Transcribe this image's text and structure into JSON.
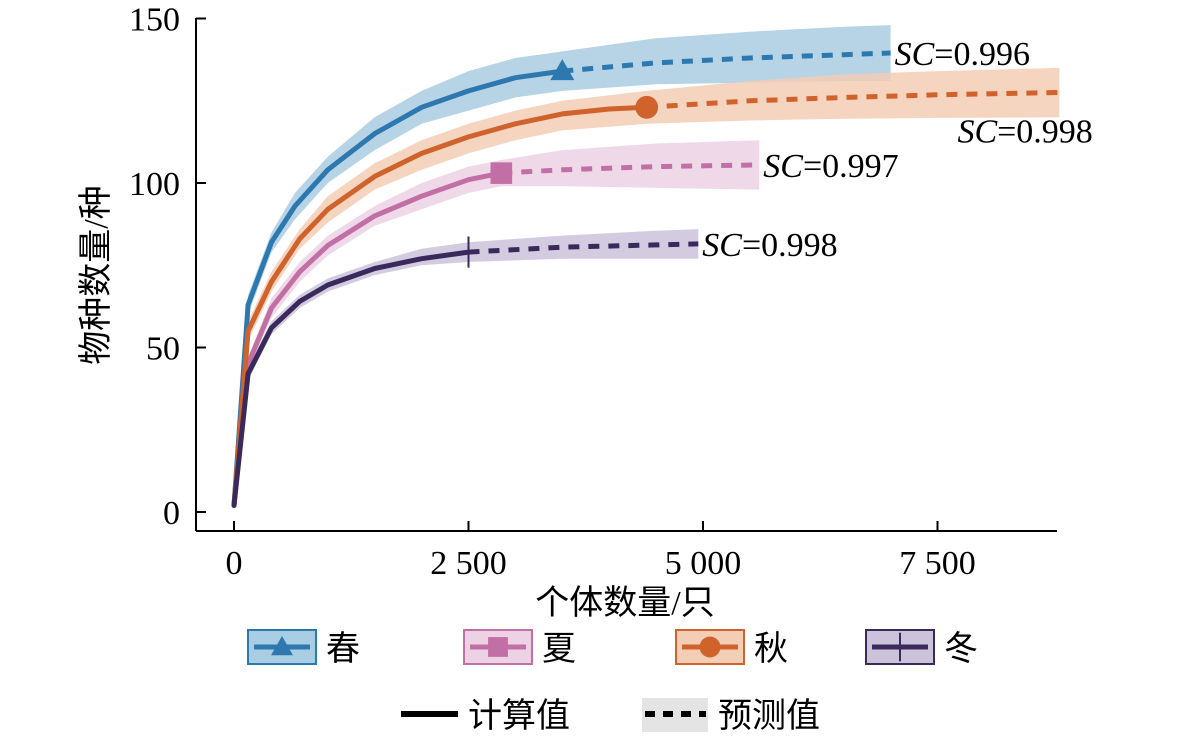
{
  "chart_data": {
    "type": "line",
    "xlabel": "个体数量/只",
    "ylabel": "物种数量/种",
    "xlim": [
      0,
      8800
    ],
    "ylim": [
      0,
      150
    ],
    "xticks": [
      0,
      2500,
      5000,
      7500
    ],
    "xtick_labels": [
      "0",
      "2 500",
      "5 000",
      "7 500"
    ],
    "yticks": [
      0,
      50,
      100,
      150
    ],
    "ytick_labels": [
      "0",
      "50",
      "100",
      "150"
    ],
    "grid": false,
    "legend_placement": "bottom",
    "series": [
      {
        "name": "春",
        "color": "#2e78b0",
        "band_color": "#a9cde2",
        "marker": "triangle",
        "marker_x": 3500,
        "sc_label": "SC=0.996",
        "calculated": [
          [
            0,
            2
          ],
          [
            150,
            63
          ],
          [
            400,
            82
          ],
          [
            650,
            93
          ],
          [
            1000,
            104
          ],
          [
            1500,
            115
          ],
          [
            2000,
            123
          ],
          [
            2500,
            128
          ],
          [
            3000,
            132
          ],
          [
            3500,
            134
          ]
        ],
        "predicted": [
          [
            3500,
            134
          ],
          [
            4500,
            136.5
          ],
          [
            5500,
            138
          ],
          [
            6500,
            139
          ],
          [
            7000,
            139.5
          ]
        ],
        "band_upper": [
          [
            0,
            3
          ],
          [
            150,
            66
          ],
          [
            400,
            85
          ],
          [
            650,
            97
          ],
          [
            1000,
            108
          ],
          [
            1500,
            120
          ],
          [
            2000,
            128
          ],
          [
            2500,
            134
          ],
          [
            3000,
            138
          ],
          [
            3500,
            140
          ],
          [
            4500,
            144
          ],
          [
            5500,
            146
          ],
          [
            6500,
            147.5
          ],
          [
            7000,
            148
          ]
        ],
        "band_lower": [
          [
            0,
            1
          ],
          [
            150,
            60
          ],
          [
            400,
            79
          ],
          [
            650,
            89
          ],
          [
            1000,
            100
          ],
          [
            1500,
            110
          ],
          [
            2000,
            118
          ],
          [
            2500,
            122
          ],
          [
            3000,
            126
          ],
          [
            3500,
            128
          ],
          [
            4500,
            130
          ],
          [
            5500,
            130.5
          ],
          [
            6500,
            131
          ],
          [
            7000,
            131
          ]
        ]
      },
      {
        "name": "夏",
        "color": "#c26fa6",
        "band_color": "#ecd2e4",
        "marker": "square",
        "marker_x": 2850,
        "sc_label": "SC=0.997",
        "calculated": [
          [
            0,
            2
          ],
          [
            150,
            45
          ],
          [
            400,
            62
          ],
          [
            700,
            73
          ],
          [
            1000,
            81
          ],
          [
            1500,
            90
          ],
          [
            2000,
            96
          ],
          [
            2500,
            101
          ],
          [
            2850,
            103
          ]
        ],
        "predicted": [
          [
            2850,
            103
          ],
          [
            3500,
            104
          ],
          [
            4500,
            105
          ],
          [
            5600,
            105.5
          ]
        ],
        "band_upper": [
          [
            0,
            3
          ],
          [
            150,
            47
          ],
          [
            400,
            65
          ],
          [
            700,
            76
          ],
          [
            1000,
            84
          ],
          [
            1500,
            93
          ],
          [
            2000,
            100
          ],
          [
            2500,
            105
          ],
          [
            2850,
            107
          ],
          [
            3500,
            110
          ],
          [
            4500,
            112
          ],
          [
            5600,
            113
          ]
        ],
        "band_lower": [
          [
            0,
            1
          ],
          [
            150,
            43
          ],
          [
            400,
            59
          ],
          [
            700,
            70
          ],
          [
            1000,
            78
          ],
          [
            1500,
            87
          ],
          [
            2000,
            92
          ],
          [
            2500,
            97
          ],
          [
            2850,
            99
          ],
          [
            3500,
            99
          ],
          [
            4500,
            98.5
          ],
          [
            5600,
            98
          ]
        ]
      },
      {
        "name": "秋",
        "color": "#d0622c",
        "band_color": "#f3cdb5",
        "marker": "circle",
        "marker_x": 4400,
        "sc_label": "SC=0.998",
        "calculated": [
          [
            0,
            2
          ],
          [
            150,
            55
          ],
          [
            400,
            70
          ],
          [
            700,
            83
          ],
          [
            1000,
            92
          ],
          [
            1500,
            102
          ],
          [
            2000,
            109
          ],
          [
            2500,
            114
          ],
          [
            3000,
            118
          ],
          [
            3500,
            121
          ],
          [
            4000,
            122.5
          ],
          [
            4400,
            123
          ]
        ],
        "predicted": [
          [
            4400,
            123
          ],
          [
            5500,
            125
          ],
          [
            6500,
            126
          ],
          [
            7500,
            126.8
          ],
          [
            8800,
            127.5
          ]
        ],
        "band_upper": [
          [
            0,
            3
          ],
          [
            150,
            58
          ],
          [
            400,
            73
          ],
          [
            700,
            86
          ],
          [
            1000,
            96
          ],
          [
            1500,
            106
          ],
          [
            2000,
            113
          ],
          [
            2500,
            118
          ],
          [
            3000,
            122
          ],
          [
            3500,
            125
          ],
          [
            4400,
            128
          ],
          [
            5500,
            131
          ],
          [
            6500,
            133
          ],
          [
            7500,
            134
          ],
          [
            8800,
            135
          ]
        ],
        "band_lower": [
          [
            0,
            1
          ],
          [
            150,
            52
          ],
          [
            400,
            67
          ],
          [
            700,
            80
          ],
          [
            1000,
            88
          ],
          [
            1500,
            98
          ],
          [
            2000,
            104
          ],
          [
            2500,
            109
          ],
          [
            3000,
            113
          ],
          [
            3500,
            116
          ],
          [
            4400,
            118
          ],
          [
            5500,
            119
          ],
          [
            6500,
            119.5
          ],
          [
            7500,
            119.8
          ],
          [
            8800,
            120
          ]
        ]
      },
      {
        "name": "冬",
        "color": "#3a2a5c",
        "band_color": "#cbc3da",
        "marker": "plus",
        "marker_x": 2500,
        "sc_label": "SC=0.998",
        "calculated": [
          [
            0,
            2
          ],
          [
            150,
            42
          ],
          [
            400,
            56
          ],
          [
            700,
            64
          ],
          [
            1000,
            69
          ],
          [
            1500,
            74
          ],
          [
            2000,
            77
          ],
          [
            2500,
            79
          ]
        ],
        "predicted": [
          [
            2500,
            79
          ],
          [
            3500,
            80.5
          ],
          [
            4500,
            81.2
          ],
          [
            4950,
            81.5
          ]
        ],
        "band_upper": [
          [
            0,
            3
          ],
          [
            150,
            44
          ],
          [
            400,
            58
          ],
          [
            700,
            66
          ],
          [
            1000,
            71
          ],
          [
            1500,
            76
          ],
          [
            2000,
            80
          ],
          [
            2500,
            82
          ],
          [
            3500,
            84
          ],
          [
            4500,
            85.5
          ],
          [
            4950,
            86
          ]
        ],
        "band_lower": [
          [
            0,
            1
          ],
          [
            150,
            40
          ],
          [
            400,
            54
          ],
          [
            700,
            62
          ],
          [
            1000,
            67
          ],
          [
            1500,
            72
          ],
          [
            2000,
            75
          ],
          [
            2500,
            76
          ],
          [
            3500,
            77
          ],
          [
            4500,
            77
          ],
          [
            4950,
            77
          ]
        ]
      }
    ]
  },
  "line_legend": {
    "calculated_label": "计算值",
    "predicted_label": "预测值"
  }
}
